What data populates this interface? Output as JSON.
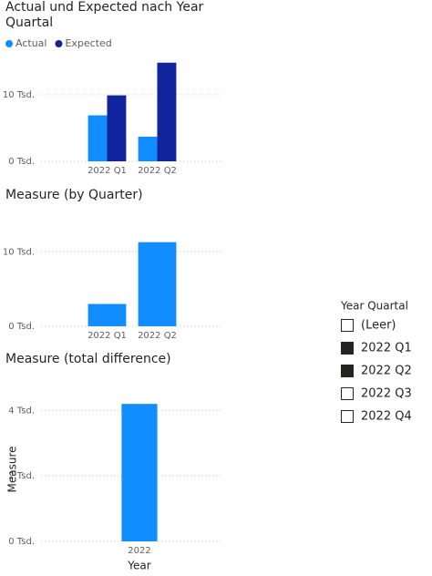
{
  "chart_data": [
    {
      "type": "bar",
      "title": "Actual und Expected nach Year Quartal",
      "categories": [
        "2022 Q1",
        "2022 Q2"
      ],
      "series": [
        {
          "name": "Actual",
          "color": "#118DFF",
          "values": [
            6900,
            3700
          ]
        },
        {
          "name": "Expected",
          "color": "#12239E",
          "values": [
            9900,
            14800
          ]
        }
      ],
      "ylim": [
        0,
        16000
      ],
      "yticks": [
        {
          "value": 0,
          "label": "0 Tsd."
        },
        {
          "value": 10000,
          "label": "10 Tsd."
        }
      ],
      "grid": true,
      "legend": "top-left"
    },
    {
      "type": "bar",
      "title": "Measure (by Quarter)",
      "categories": [
        "2022 Q1",
        "2022 Q2"
      ],
      "values": [
        3000,
        11300
      ],
      "color": "#118DFF",
      "ylim": [
        0,
        12000
      ],
      "yticks": [
        {
          "value": 0,
          "label": "0 Tsd."
        },
        {
          "value": 10000,
          "label": "10 Tsd."
        }
      ],
      "grid": true
    },
    {
      "type": "bar",
      "title": "Measure (total difference)",
      "categories": [
        "2022"
      ],
      "values": [
        4200
      ],
      "color": "#118DFF",
      "x_label": "Year",
      "y_label": "Measure",
      "ylim": [
        0,
        4400
      ],
      "yticks": [
        {
          "value": 0,
          "label": "0 Tsd."
        },
        {
          "value": 2000,
          "label": "2 Tsd."
        },
        {
          "value": 4000,
          "label": "4 Tsd."
        }
      ],
      "grid": true
    }
  ],
  "slicer": {
    "title": "Year Quartal",
    "items": [
      {
        "label": "(Leer)",
        "checked": false
      },
      {
        "label": "2022 Q1",
        "checked": true
      },
      {
        "label": "2022 Q2",
        "checked": true
      },
      {
        "label": "2022 Q3",
        "checked": false
      },
      {
        "label": "2022 Q4",
        "checked": false
      }
    ]
  }
}
